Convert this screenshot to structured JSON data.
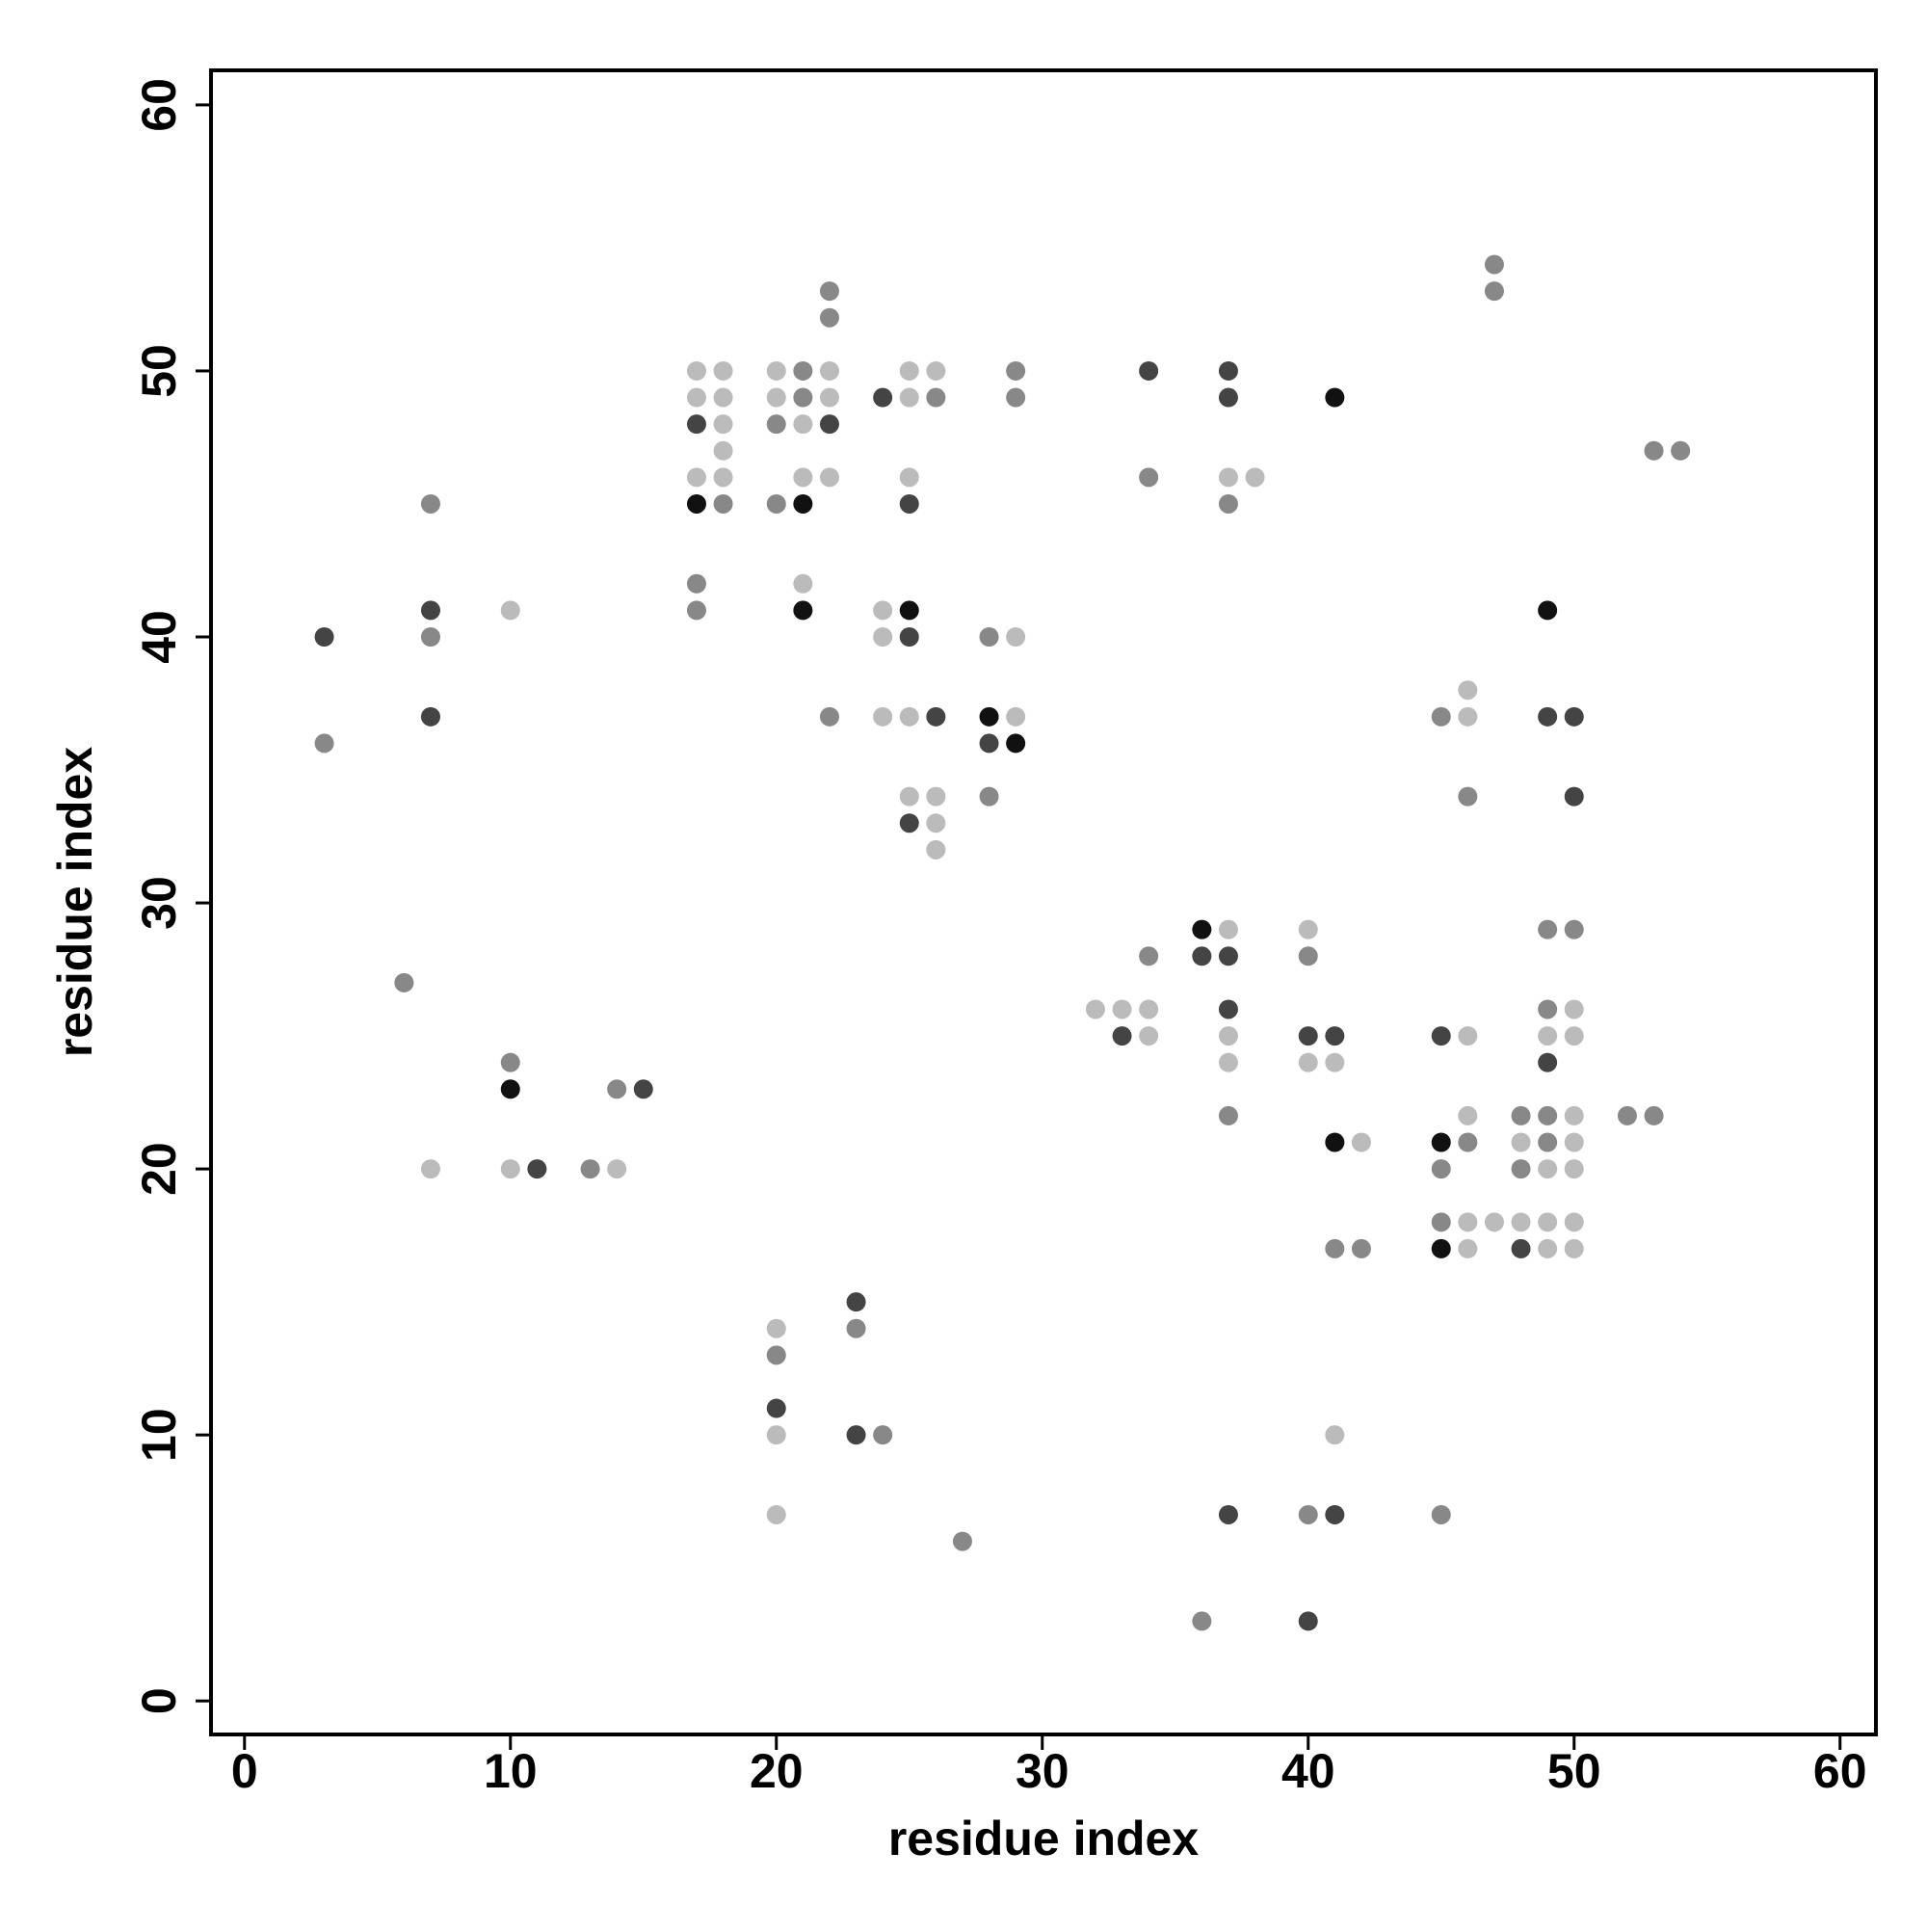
{
  "chart_data": {
    "type": "scatter",
    "x_label": "residue index",
    "y_label": "residue index",
    "xlim": [
      -1.26,
      61.35
    ],
    "ylim": [
      -1.26,
      61.3
    ],
    "xticks": [
      0,
      10,
      20,
      30,
      40,
      50,
      60
    ],
    "yticks": [
      0,
      10,
      20,
      30,
      40,
      50,
      60
    ],
    "grid": false,
    "series": [
      {
        "color": "#111111",
        "x": [
          10,
          17,
          21,
          21,
          25,
          28,
          29,
          36,
          41,
          41,
          45,
          45,
          49
        ],
        "y": [
          23,
          45,
          45,
          41,
          41,
          37,
          36,
          29,
          49,
          21,
          21,
          17,
          41
        ]
      },
      {
        "color": "#444444",
        "x": [
          3,
          7,
          7,
          11,
          15,
          17,
          20,
          22,
          23,
          23,
          24,
          25,
          25,
          25,
          26,
          28,
          33,
          34,
          36,
          37,
          37,
          37,
          37,
          37,
          40,
          40,
          41,
          41,
          45,
          48,
          49,
          49,
          50,
          50
        ],
        "y": [
          40,
          41,
          37,
          20,
          23,
          48,
          11,
          48,
          15,
          10,
          49,
          45,
          40,
          33,
          37,
          36,
          25,
          50,
          28,
          50,
          49,
          28,
          26,
          7,
          25,
          3,
          25,
          7,
          25,
          17,
          37,
          24,
          37,
          34
        ]
      },
      {
        "color": "#888888",
        "x": [
          3,
          6,
          7,
          7,
          10,
          13,
          14,
          17,
          17,
          18,
          20,
          20,
          20,
          21,
          21,
          22,
          22,
          22,
          23,
          24,
          26,
          27,
          28,
          28,
          29,
          29,
          34,
          34,
          36,
          37,
          37,
          40,
          40,
          41,
          42,
          45,
          45,
          45,
          45,
          46,
          46,
          47,
          47,
          48,
          48,
          49,
          49,
          49,
          49,
          50,
          52,
          53,
          53,
          54
        ],
        "y": [
          36,
          27,
          45,
          40,
          24,
          20,
          23,
          42,
          41,
          45,
          48,
          45,
          13,
          50,
          49,
          53,
          52,
          37,
          14,
          10,
          49,
          6,
          40,
          34,
          50,
          49,
          46,
          28,
          3,
          45,
          22,
          28,
          7,
          17,
          17,
          37,
          20,
          18,
          7,
          34,
          21,
          54,
          53,
          22,
          20,
          29,
          26,
          22,
          21,
          29,
          22,
          47,
          22,
          47
        ]
      },
      {
        "color": "#bbbbbb",
        "x": [
          7,
          10,
          10,
          14,
          17,
          17,
          17,
          18,
          18,
          18,
          18,
          18,
          20,
          20,
          20,
          20,
          20,
          21,
          21,
          21,
          22,
          22,
          22,
          24,
          24,
          24,
          25,
          25,
          25,
          25,
          25,
          26,
          26,
          26,
          26,
          29,
          29,
          32,
          33,
          34,
          34,
          37,
          37,
          37,
          37,
          38,
          40,
          40,
          41,
          41,
          42,
          46,
          46,
          46,
          46,
          46,
          46,
          47,
          48,
          48,
          49,
          49,
          49,
          49,
          50,
          50,
          50,
          50,
          50,
          50,
          50
        ],
        "y": [
          20,
          41,
          20,
          20,
          50,
          49,
          46,
          50,
          49,
          48,
          47,
          46,
          50,
          49,
          14,
          10,
          7,
          48,
          46,
          42,
          50,
          49,
          46,
          41,
          40,
          37,
          50,
          49,
          46,
          37,
          34,
          50,
          34,
          33,
          32,
          40,
          37,
          26,
          26,
          26,
          25,
          46,
          29,
          25,
          24,
          46,
          29,
          24,
          24,
          10,
          21,
          38,
          37,
          25,
          22,
          18,
          17,
          18,
          21,
          18,
          25,
          20,
          18,
          17,
          26,
          25,
          22,
          21,
          20,
          18,
          17
        ]
      }
    ]
  }
}
